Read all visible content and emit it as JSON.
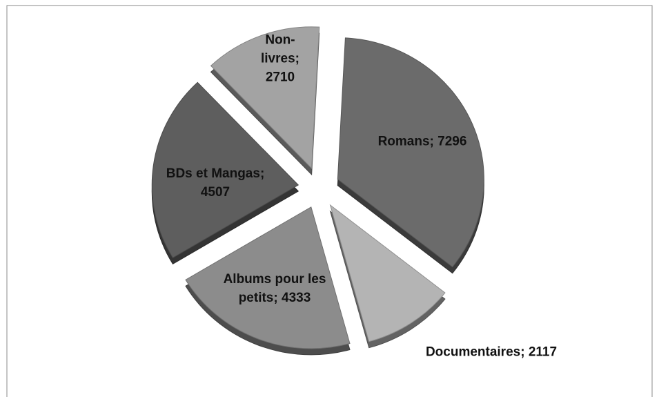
{
  "chart_data": {
    "type": "pie",
    "categories": [
      "Romans",
      "Documentaires",
      "Albums pour les petits",
      "BDs et Mangas",
      "Non-livres"
    ],
    "values": [
      7296,
      2117,
      4333,
      4507,
      2710
    ],
    "colors": [
      "#6b6b6b",
      "#b4b4b4",
      "#8c8c8c",
      "#5e5e5e",
      "#a3a3a3"
    ],
    "label_separator": "; ",
    "start_angle": 3,
    "exploded": true,
    "three_d": true
  }
}
